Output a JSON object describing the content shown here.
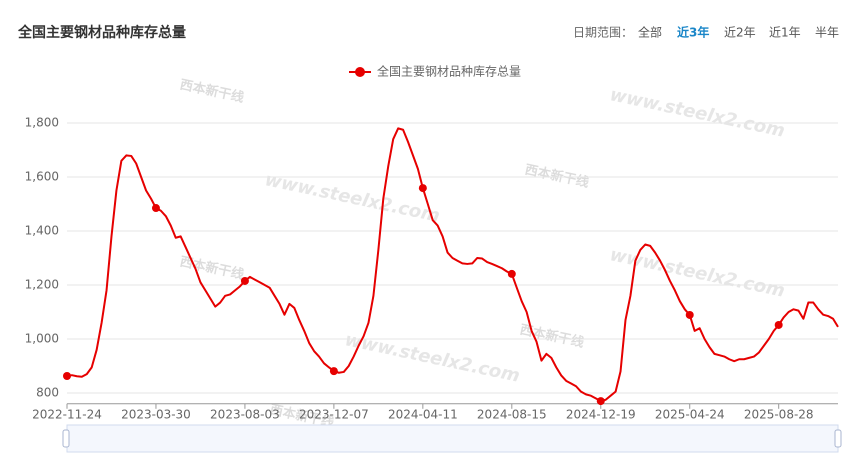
{
  "header": {
    "range_label": "日期范围：",
    "range_options": [
      "全部",
      "近3年",
      "近2年",
      "近1年",
      "半年"
    ],
    "active_range": 1,
    "watermark": [
      "www.steelx2.com",
      "西本新干线"
    ]
  },
  "chart_data": {
    "type": "line",
    "title": "全国主要钢材品种库存总量",
    "categories": [
      "2022-11-24",
      null,
      null,
      null,
      null,
      null,
      null,
      null,
      null,
      null,
      null,
      null,
      null,
      null,
      null,
      null,
      null,
      null,
      "2023-03-30",
      null,
      null,
      null,
      null,
      null,
      null,
      null,
      null,
      null,
      null,
      null,
      null,
      null,
      null,
      null,
      null,
      null,
      "2023-08-03",
      null,
      null,
      null,
      null,
      null,
      null,
      null,
      null,
      null,
      null,
      null,
      null,
      null,
      null,
      null,
      null,
      null,
      "2023-12-07",
      null,
      null,
      null,
      null,
      null,
      null,
      null,
      null,
      null,
      null,
      null,
      null,
      null,
      null,
      null,
      null,
      null,
      "2024-04-11",
      null,
      null,
      null,
      null,
      null,
      null,
      null,
      null,
      null,
      null,
      null,
      null,
      null,
      null,
      null,
      null,
      null,
      "2024-08-15",
      null,
      null,
      null,
      null,
      null,
      null,
      null,
      null,
      null,
      null,
      null,
      null,
      null,
      null,
      null,
      null,
      null,
      "2024-12-19",
      null,
      null,
      null,
      null,
      null,
      null,
      null,
      null,
      null,
      null,
      null,
      null,
      null,
      null,
      null,
      null,
      null,
      "2025-04-24",
      null,
      null,
      null,
      null,
      null,
      null,
      null,
      null,
      null,
      null,
      null,
      null,
      null,
      null,
      null,
      null,
      null,
      "2025-08-28",
      null,
      null,
      null,
      null,
      null,
      null,
      null,
      null,
      null,
      null,
      null,
      null
    ],
    "series": [
      {
        "name": "全国主要钢材品种库存总量",
        "color": "#e60000",
        "values": [
          863,
          866,
          862,
          860,
          870,
          895,
          960,
          1060,
          1180,
          1380,
          1550,
          1660,
          1680,
          1678,
          1650,
          1600,
          1550,
          1520,
          1485,
          1475,
          1455,
          1420,
          1375,
          1380,
          1340,
          1300,
          1260,
          1210,
          1180,
          1150,
          1120,
          1135,
          1160,
          1165,
          1180,
          1195,
          1215,
          1230,
          1220,
          1210,
          1200,
          1190,
          1160,
          1130,
          1090,
          1130,
          1115,
          1070,
          1030,
          985,
          955,
          935,
          910,
          895,
          881,
          875,
          878,
          900,
          935,
          975,
          1010,
          1060,
          1160,
          1330,
          1520,
          1640,
          1740,
          1780,
          1775,
          1730,
          1680,
          1630,
          1559,
          1500,
          1440,
          1420,
          1380,
          1320,
          1300,
          1290,
          1280,
          1278,
          1280,
          1300,
          1298,
          1285,
          1278,
          1270,
          1262,
          1250,
          1241,
          1190,
          1140,
          1100,
          1030,
          990,
          920,
          945,
          930,
          895,
          865,
          845,
          835,
          825,
          805,
          795,
          790,
          780,
          770,
          775,
          790,
          805,
          880,
          1070,
          1160,
          1290,
          1330,
          1350,
          1345,
          1320,
          1290,
          1255,
          1215,
          1180,
          1140,
          1110,
          1089,
          1030,
          1040,
          1000,
          970,
          945,
          940,
          935,
          925,
          918,
          925,
          925,
          930,
          935,
          950,
          975,
          1000,
          1030,
          1052,
          1080,
          1100,
          1110,
          1105,
          1075,
          1135,
          1135,
          1110,
          1090,
          1085,
          1075,
          1045
        ]
      }
    ],
    "ylim": [
      760,
      1860
    ],
    "yticks": [
      800,
      {
        "value": 1000,
        "label": "1,000"
      },
      {
        "value": 1200,
        "label": "1,200"
      },
      {
        "value": 1400,
        "label": "1,400"
      },
      {
        "value": 1600,
        "label": "1,600"
      },
      {
        "value": 1800,
        "label": "1,800"
      }
    ],
    "grid": true,
    "legend": "top"
  }
}
